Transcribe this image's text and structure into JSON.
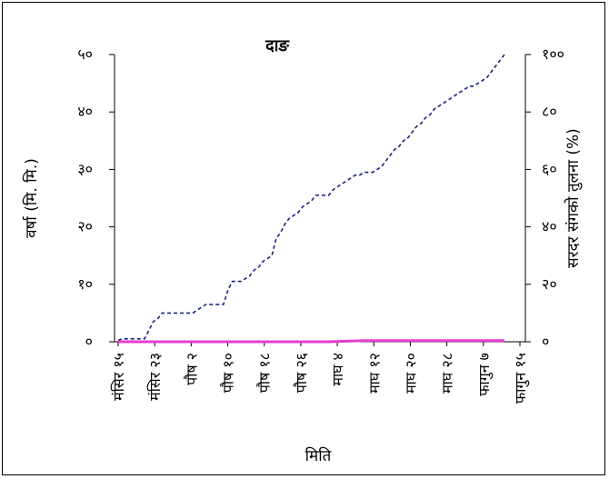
{
  "chart_data": {
    "type": "line",
    "title": "दाङ",
    "xlabel": "मिति",
    "ylabel_left": "वर्षा (मि. मि.)",
    "ylabel_right": "सरदर संगको तुलना (%)",
    "yleft": {
      "lim": [
        0,
        50
      ],
      "ticks": [
        0,
        10,
        20,
        30,
        40,
        50
      ],
      "tick_labels": [
        "०",
        "१०",
        "२०",
        "३०",
        "४०",
        "५०"
      ]
    },
    "yright": {
      "lim": [
        0,
        100
      ],
      "ticks": [
        0,
        20,
        40,
        60,
        80,
        100
      ],
      "tick_labels": [
        "०",
        "२०",
        "४०",
        "६०",
        "८०",
        "१००"
      ]
    },
    "categories": [
      "मंसिर १५",
      "मंसिर २३",
      "पौष २",
      "पौष १०",
      "पौष १८",
      "पौष २६",
      "माघ ४",
      "माघ १२",
      "माघ २०",
      "माघ २८",
      "फागुन ७",
      "फागुन १५"
    ],
    "grid": false,
    "legend": "none",
    "series": [
      {
        "axis": "right",
        "color": "#1a237e",
        "style": "dashed",
        "x": [
          0,
          1,
          2,
          3,
          4,
          5,
          6,
          7,
          8,
          9,
          10,
          11,
          12,
          13,
          14,
          15,
          16,
          17,
          18,
          19,
          20,
          21,
          22,
          23,
          24,
          25,
          26,
          27,
          28,
          29,
          30,
          31,
          32,
          33,
          34,
          35,
          36,
          37,
          38,
          39,
          40,
          41,
          42,
          43,
          44,
          45,
          46,
          47,
          48,
          49,
          50,
          51,
          52,
          53,
          54,
          55,
          56,
          57,
          58,
          59,
          60,
          61,
          62,
          63,
          64,
          65,
          66,
          67,
          68,
          69,
          70,
          71,
          72,
          73,
          74,
          75,
          76,
          77,
          78,
          79,
          80,
          81,
          82,
          83,
          84,
          85,
          86,
          87,
          88
        ],
        "values": [
          0.5,
          1,
          1,
          1,
          1,
          1,
          1,
          4,
          7,
          8,
          10,
          10,
          10,
          10,
          10,
          10,
          10,
          10,
          11,
          12,
          13,
          13,
          13,
          13,
          13,
          18,
          21,
          21,
          21,
          22,
          23,
          25,
          26,
          28,
          29,
          30,
          36,
          38,
          41,
          43,
          44,
          45,
          47,
          48,
          49,
          51,
          51,
          51,
          51,
          53,
          54,
          55,
          56,
          57,
          58,
          58,
          59,
          59,
          59,
          60,
          61,
          63,
          65,
          67,
          68,
          70,
          71,
          73,
          75,
          76,
          78,
          79,
          81,
          82,
          83,
          84,
          85,
          86,
          87,
          88,
          89,
          89,
          90,
          91,
          92,
          94,
          96,
          98,
          100
        ]
      },
      {
        "axis": "left",
        "color": "#e83cd0",
        "style": "solid",
        "x": [
          0,
          8,
          16,
          24,
          32,
          40,
          48,
          56,
          64,
          72,
          80,
          88
        ],
        "values": [
          0,
          0,
          0,
          0,
          0,
          0,
          0,
          0.2,
          0.2,
          0.2,
          0.2,
          0.2
        ]
      }
    ]
  }
}
